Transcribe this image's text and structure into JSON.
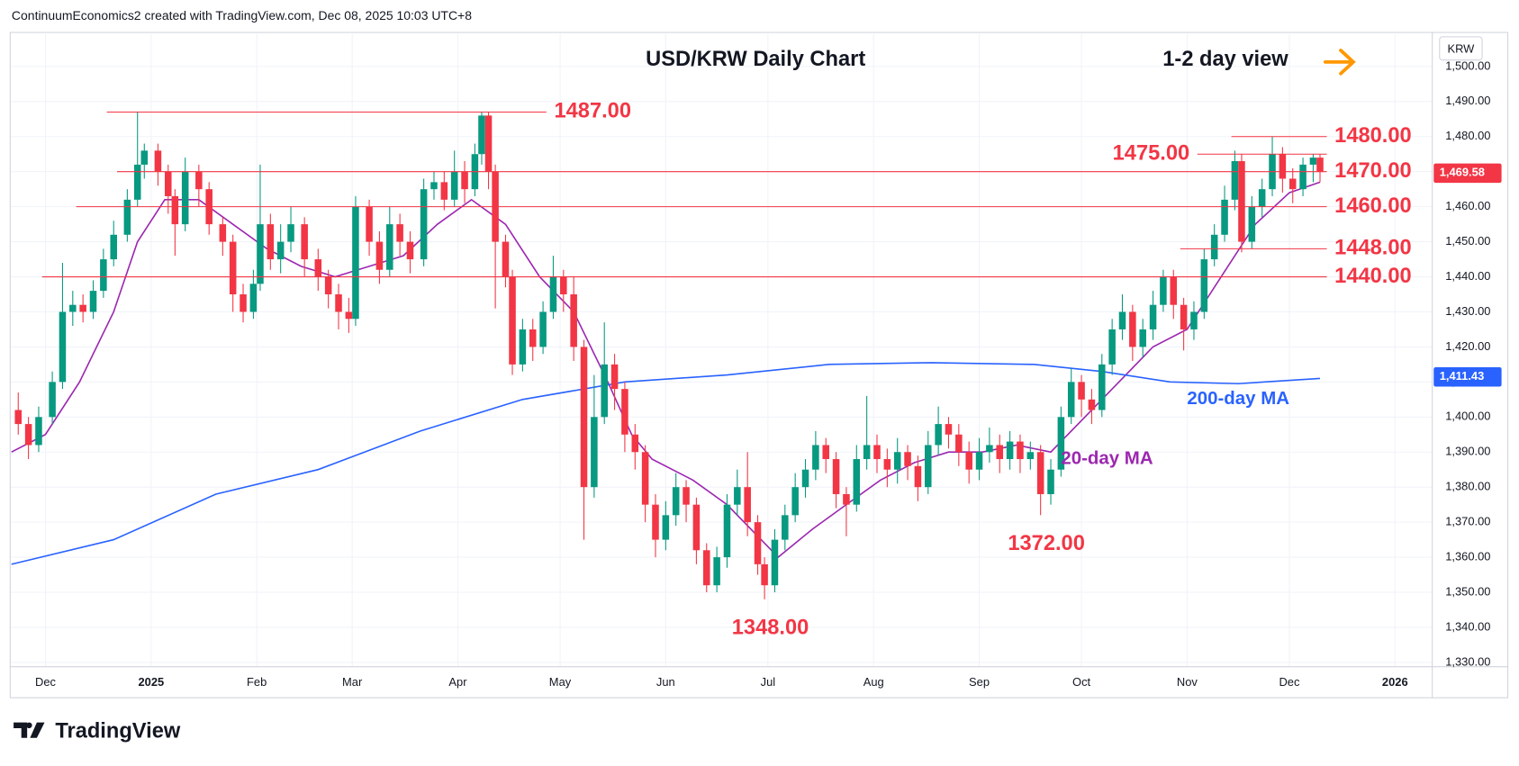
{
  "header": "ContinuumEconomics2 created with TradingView.com, Dec 08, 2025 10:03 UTC+8",
  "footer_logo": "TradingView",
  "chart_data": {
    "type": "candlestick",
    "title": "USD/KRW Daily Chart",
    "subtitle": "1-2 day view",
    "axis_unit": "KRW",
    "up_color": "#089981",
    "down_color": "#f23645",
    "xlim": [
      -10.5,
      406.8
    ],
    "ylim": [
      1328.9,
      1509.3
    ],
    "xticks": [
      {
        "value": 0,
        "label": "Dec"
      },
      {
        "value": 31,
        "label": "2025"
      },
      {
        "value": 62,
        "label": "Feb"
      },
      {
        "value": 90,
        "label": "Mar"
      },
      {
        "value": 121,
        "label": "Apr"
      },
      {
        "value": 151,
        "label": "May"
      },
      {
        "value": 182,
        "label": "Jun"
      },
      {
        "value": 212,
        "label": "Jul"
      },
      {
        "value": 243,
        "label": "Aug"
      },
      {
        "value": 274,
        "label": "Sep"
      },
      {
        "value": 304,
        "label": "Oct"
      },
      {
        "value": 335,
        "label": "Nov"
      },
      {
        "value": 365,
        "label": "Dec"
      },
      {
        "value": 396,
        "label": "2026"
      }
    ],
    "yticks": [
      {
        "value": 1330,
        "label": "1,330.00"
      },
      {
        "value": 1340,
        "label": "1,340.00"
      },
      {
        "value": 1350,
        "label": "1,350.00"
      },
      {
        "value": 1360,
        "label": "1,360.00"
      },
      {
        "value": 1370,
        "label": "1,370.00"
      },
      {
        "value": 1380,
        "label": "1,380.00"
      },
      {
        "value": 1390,
        "label": "1,390.00"
      },
      {
        "value": 1400,
        "label": "1,400.00"
      },
      {
        "value": 1410,
        "label": "1,410.00"
      },
      {
        "value": 1420,
        "label": "1,420.00"
      },
      {
        "value": 1430,
        "label": "1,430.00"
      },
      {
        "value": 1440,
        "label": "1,440.00"
      },
      {
        "value": 1450,
        "label": "1,450.00"
      },
      {
        "value": 1460,
        "label": "1,460.00"
      },
      {
        "value": 1470,
        "label": "1,470.00"
      },
      {
        "value": 1480,
        "label": "1,480.00"
      },
      {
        "value": 1490,
        "label": "1,490.00"
      },
      {
        "value": 1500,
        "label": "1,500.00"
      }
    ],
    "grid": true,
    "x": [
      -8,
      -5,
      -2,
      2,
      5,
      8,
      11,
      14,
      17,
      20,
      24,
      27,
      29,
      33,
      36,
      38,
      41,
      45,
      48,
      52,
      55,
      58,
      61,
      63,
      66,
      69,
      72,
      76,
      80,
      83,
      86,
      89,
      91,
      95,
      98,
      101,
      104,
      107,
      111,
      114,
      117,
      120,
      123,
      126,
      128,
      130,
      132,
      135,
      137,
      140,
      143,
      146,
      149,
      152,
      155,
      158,
      161,
      164,
      167,
      170,
      173,
      176,
      179,
      182,
      185,
      188,
      191,
      194,
      197,
      200,
      203,
      206,
      209,
      211,
      214,
      217,
      220,
      223,
      226,
      229,
      232,
      235,
      238,
      241,
      244,
      247,
      250,
      253,
      256,
      259,
      262,
      265,
      268,
      271,
      274,
      277,
      280,
      283,
      286,
      289,
      292,
      295,
      298,
      301,
      304,
      307,
      310,
      313,
      316,
      319,
      322,
      325,
      328,
      331,
      334,
      337,
      340,
      343,
      346,
      349,
      351,
      354,
      357,
      360,
      363,
      366,
      369,
      372,
      374
    ],
    "open": [
      1402,
      1398,
      1392,
      1400,
      1410,
      1430,
      1432,
      1430,
      1436,
      1445,
      1452,
      1462,
      1472,
      1476,
      1470,
      1463,
      1455,
      1470,
      1465,
      1455,
      1450,
      1435,
      1430,
      1438,
      1455,
      1445,
      1450,
      1455,
      1445,
      1440,
      1435,
      1430,
      1428,
      1460,
      1450,
      1442,
      1455,
      1450,
      1445,
      1465,
      1467,
      1462,
      1470,
      1465,
      1475,
      1486,
      1470,
      1450,
      1440,
      1415,
      1425,
      1420,
      1430,
      1440,
      1435,
      1420,
      1380,
      1400,
      1415,
      1408,
      1395,
      1390,
      1375,
      1365,
      1372,
      1380,
      1375,
      1362,
      1352,
      1360,
      1375,
      1380,
      1370,
      1358,
      1352,
      1365,
      1372,
      1380,
      1385,
      1392,
      1388,
      1378,
      1375,
      1388,
      1392,
      1388,
      1385,
      1390,
      1386,
      1380,
      1392,
      1398,
      1395,
      1390,
      1385,
      1390,
      1392,
      1388,
      1393,
      1388,
      1390,
      1378,
      1385,
      1400,
      1410,
      1405,
      1402,
      1415,
      1425,
      1430,
      1420,
      1425,
      1432,
      1440,
      1432,
      1425,
      1430,
      1445,
      1452,
      1462,
      1473,
      1450,
      1460,
      1465,
      1475,
      1468,
      1465,
      1472,
      1474
    ],
    "high": [
      1407,
      1400,
      1403,
      1413,
      1444,
      1436,
      1435,
      1439,
      1448,
      1456,
      1465,
      1487,
      1478,
      1478,
      1472,
      1465,
      1474,
      1472,
      1467,
      1457,
      1452,
      1438,
      1442,
      1472,
      1458,
      1455,
      1460,
      1457,
      1448,
      1442,
      1438,
      1434,
      1463,
      1462,
      1453,
      1460,
      1458,
      1453,
      1468,
      1470,
      1470,
      1476,
      1473,
      1478,
      1487,
      1487,
      1472,
      1452,
      1442,
      1428,
      1428,
      1433,
      1446,
      1442,
      1440,
      1422,
      1412,
      1427,
      1418,
      1410,
      1398,
      1392,
      1378,
      1376,
      1384,
      1382,
      1377,
      1364,
      1363,
      1378,
      1385,
      1390,
      1372,
      1360,
      1368,
      1375,
      1384,
      1388,
      1396,
      1394,
      1390,
      1380,
      1392,
      1406,
      1395,
      1391,
      1394,
      1392,
      1389,
      1396,
      1403,
      1400,
      1398,
      1393,
      1394,
      1397,
      1395,
      1396,
      1395,
      1393,
      1392,
      1388,
      1403,
      1414,
      1412,
      1408,
      1418,
      1428,
      1435,
      1432,
      1428,
      1436,
      1442,
      1442,
      1434,
      1433,
      1448,
      1455,
      1466,
      1476,
      1475,
      1463,
      1468,
      1480,
      1477,
      1471,
      1474,
      1475,
      1475
    ],
    "low": [
      1395,
      1388,
      1390,
      1398,
      1408,
      1426,
      1427,
      1428,
      1434,
      1443,
      1450,
      1460,
      1468,
      1466,
      1458,
      1446,
      1453,
      1460,
      1452,
      1446,
      1430,
      1427,
      1428,
      1436,
      1442,
      1441,
      1447,
      1440,
      1436,
      1431,
      1425,
      1424,
      1426,
      1446,
      1438,
      1440,
      1446,
      1441,
      1443,
      1462,
      1459,
      1460,
      1461,
      1463,
      1472,
      1465,
      1431,
      1437,
      1412,
      1413,
      1416,
      1418,
      1428,
      1430,
      1416,
      1365,
      1377,
      1398,
      1402,
      1390,
      1385,
      1370,
      1360,
      1362,
      1369,
      1370,
      1358,
      1350,
      1350,
      1357,
      1372,
      1366,
      1355,
      1348,
      1350,
      1362,
      1370,
      1377,
      1382,
      1384,
      1374,
      1366,
      1373,
      1385,
      1384,
      1380,
      1381,
      1382,
      1376,
      1378,
      1389,
      1391,
      1386,
      1381,
      1382,
      1387,
      1384,
      1385,
      1384,
      1385,
      1372,
      1375,
      1383,
      1398,
      1400,
      1398,
      1400,
      1412,
      1422,
      1416,
      1417,
      1422,
      1430,
      1428,
      1419,
      1422,
      1428,
      1443,
      1450,
      1459,
      1447,
      1448,
      1457,
      1463,
      1464,
      1461,
      1463,
      1467,
      1467
    ],
    "close": [
      1398,
      1392,
      1400,
      1410,
      1430,
      1432,
      1430,
      1436,
      1445,
      1452,
      1462,
      1472,
      1476,
      1470,
      1463,
      1455,
      1470,
      1465,
      1455,
      1450,
      1435,
      1430,
      1438,
      1455,
      1445,
      1450,
      1455,
      1445,
      1440,
      1435,
      1430,
      1428,
      1460,
      1450,
      1442,
      1455,
      1450,
      1445,
      1465,
      1467,
      1462,
      1470,
      1465,
      1475,
      1486,
      1470,
      1450,
      1440,
      1415,
      1425,
      1420,
      1430,
      1440,
      1435,
      1420,
      1380,
      1400,
      1415,
      1408,
      1395,
      1390,
      1375,
      1365,
      1372,
      1380,
      1375,
      1362,
      1352,
      1360,
      1375,
      1380,
      1370,
      1358,
      1352,
      1365,
      1372,
      1380,
      1385,
      1392,
      1388,
      1378,
      1375,
      1388,
      1392,
      1388,
      1385,
      1390,
      1386,
      1380,
      1392,
      1398,
      1395,
      1390,
      1385,
      1390,
      1392,
      1388,
      1393,
      1388,
      1390,
      1378,
      1385,
      1400,
      1410,
      1405,
      1402,
      1415,
      1425,
      1430,
      1420,
      1425,
      1432,
      1440,
      1432,
      1425,
      1430,
      1445,
      1452,
      1462,
      1473,
      1450,
      1460,
      1465,
      1475,
      1468,
      1465,
      1472,
      1474,
      1470
    ],
    "series": [
      {
        "name": "20-day MA",
        "color": "#9c27b0",
        "x": [
          -10,
          0,
          10,
          20,
          27,
          35,
          45,
          55,
          65,
          75,
          85,
          95,
          105,
          115,
          125,
          135,
          145,
          155,
          165,
          172,
          178,
          190,
          200,
          210,
          215,
          225,
          235,
          245,
          255,
          265,
          275,
          285,
          295,
          305,
          315,
          325,
          335,
          345,
          355,
          365,
          374
        ],
        "values": [
          1390,
          1395,
          1410,
          1430,
          1450,
          1462,
          1462,
          1455,
          1448,
          1443,
          1440,
          1443,
          1446,
          1455,
          1462,
          1455,
          1440,
          1430,
          1410,
          1395,
          1388,
          1382,
          1375,
          1365,
          1360,
          1368,
          1375,
          1382,
          1387,
          1390,
          1390,
          1392,
          1390,
          1400,
          1410,
          1420,
          1425,
          1440,
          1455,
          1464,
          1467
        ]
      },
      {
        "name": "200-day MA",
        "color": "#2962ff",
        "x": [
          -10,
          20,
          50,
          80,
          110,
          140,
          170,
          200,
          230,
          260,
          290,
          310,
          330,
          350,
          374
        ],
        "values": [
          1358,
          1365,
          1378,
          1385,
          1396,
          1405,
          1410,
          1412,
          1415,
          1415.5,
          1415,
          1413,
          1410,
          1409.5,
          1411
        ]
      }
    ],
    "price_labels": [
      {
        "value": 1469.58,
        "label": "1,469.58",
        "color": "#f23645"
      },
      {
        "value": 1411.43,
        "label": "1,411.43",
        "color": "#2962ff"
      }
    ],
    "levels": [
      {
        "value": 1487,
        "label": "1487.00",
        "x": [
          18,
          147
        ]
      },
      {
        "value": 1480,
        "label": "1480.00",
        "x": [
          348,
          376
        ]
      },
      {
        "value": 1475,
        "label": "1475.00",
        "x": [
          338,
          376
        ]
      },
      {
        "value": 1470,
        "label": "1470.00",
        "x": [
          21,
          376
        ]
      },
      {
        "value": 1460,
        "label": "1460.00",
        "x": [
          9,
          376
        ]
      },
      {
        "value": 1448,
        "label": "1448.00",
        "x": [
          333,
          376
        ]
      },
      {
        "value": 1440,
        "label": "1440.00",
        "x": [
          -1,
          376
        ]
      }
    ],
    "lows": [
      {
        "value": 1372,
        "label": "1372.00",
        "x": 292
      },
      {
        "value": 1348,
        "label": "1348.00",
        "x": 211
      }
    ],
    "level_color": "#f23645"
  }
}
